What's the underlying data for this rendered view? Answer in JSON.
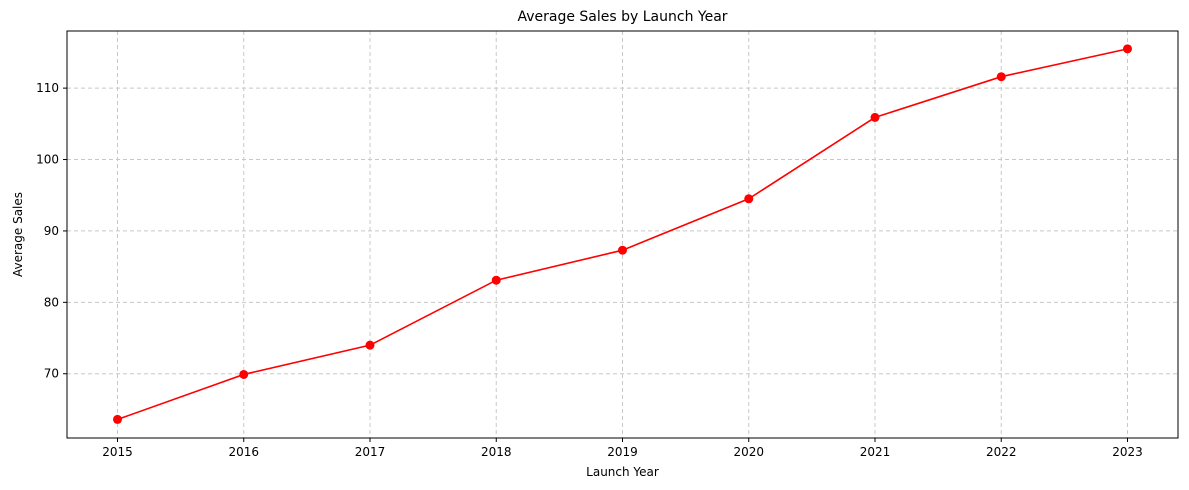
{
  "chart_data": {
    "type": "line",
    "title": "Average Sales by Launch Year",
    "xlabel": "Launch Year",
    "ylabel": "Average Sales",
    "x": [
      "2015",
      "2016",
      "2017",
      "2018",
      "2019",
      "2020",
      "2021",
      "2022",
      "2023"
    ],
    "series": [
      {
        "values": [
          63.6,
          69.9,
          74.0,
          83.1,
          87.3,
          94.5,
          105.9,
          111.6,
          115.5
        ],
        "color": "#ff0000",
        "marker": "circle"
      }
    ],
    "xlim": [
      2014.6,
      2023.4
    ],
    "ylim": [
      61.0,
      118.0
    ],
    "yticks": [
      70,
      80,
      90,
      100,
      110
    ],
    "ytick_labels": [
      "70",
      "80",
      "90",
      "100",
      "110"
    ],
    "grid": true,
    "grid_style": "dashed",
    "grid_color": "#c8c8c8",
    "legend": "none"
  }
}
